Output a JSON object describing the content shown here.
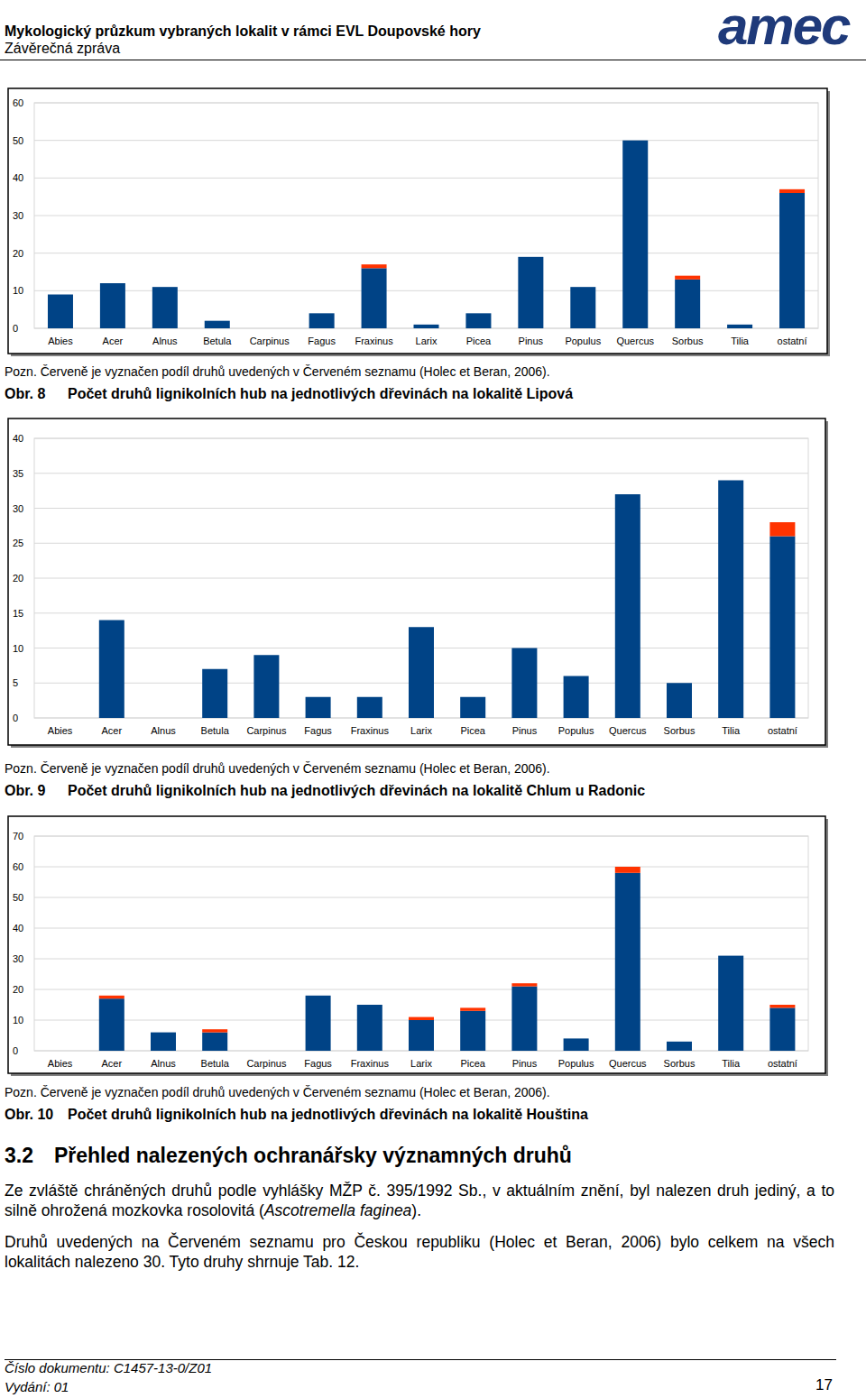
{
  "header": {
    "title": "Mykologický průzkum vybraných lokalit v rámci EVL Doupovské hory",
    "subtitle": "Závěrečná zpráva",
    "logo": "amec"
  },
  "chart_data": [
    {
      "type": "bar",
      "stacked": true,
      "grid": true,
      "title": "Počet druhů lignikolních hub na jednotlivých dřevinách na lokalitě Lipová",
      "annotations": [
        "Pozn. Červeně je vyznačen podíl druhů uvedených v Červeném seznamu (Holec et Beran, 2006).",
        "Obr. 8"
      ],
      "categories": [
        "Abies",
        "Acer",
        "Alnus",
        "Betula",
        "Carpinus",
        "Fagus",
        "Fraxinus",
        "Larix",
        "Picea",
        "Pinus",
        "Populus",
        "Quercus",
        "Sorbus",
        "Tilia",
        "ostatní"
      ],
      "series": [
        {
          "color": "#004386",
          "values": [
            9,
            12,
            11,
            2,
            0,
            4,
            16,
            1,
            4,
            19,
            11,
            50,
            13,
            1,
            36
          ]
        },
        {
          "color": "#ff3300",
          "values": [
            0,
            0,
            0,
            0,
            0,
            0,
            1,
            0,
            0,
            0,
            0,
            0,
            1,
            0,
            1
          ]
        }
      ],
      "ylim": [
        0,
        60
      ],
      "yticks": [
        0,
        10,
        20,
        30,
        40,
        50,
        60
      ]
    },
    {
      "type": "bar",
      "stacked": true,
      "grid": true,
      "title": "Počet druhů lignikolních hub na jednotlivých dřevinách na lokalitě Chlum u Radonic",
      "annotations": [
        "Pozn. Červeně je vyznačen podíl druhů uvedených v Červeném seznamu (Holec et Beran, 2006).",
        "Obr. 9"
      ],
      "categories": [
        "Abies",
        "Acer",
        "Alnus",
        "Betula",
        "Carpinus",
        "Fagus",
        "Fraxinus",
        "Larix",
        "Picea",
        "Pinus",
        "Populus",
        "Quercus",
        "Sorbus",
        "Tilia",
        "ostatní"
      ],
      "series": [
        {
          "color": "#004386",
          "values": [
            0,
            14,
            0,
            7,
            9,
            3,
            3,
            13,
            3,
            10,
            6,
            32,
            5,
            34,
            26
          ]
        },
        {
          "color": "#ff3300",
          "values": [
            0,
            0,
            0,
            0,
            0,
            0,
            0,
            0,
            0,
            0,
            0,
            0,
            0,
            0,
            2
          ]
        }
      ],
      "ylim": [
        0,
        40
      ],
      "yticks": [
        0,
        5,
        10,
        15,
        20,
        25,
        30,
        35,
        40
      ]
    },
    {
      "type": "bar",
      "stacked": true,
      "grid": true,
      "title": "Počet druhů lignikolních hub na jednotlivých dřevinách na lokalitě Houština",
      "annotations": [
        "Pozn. Červeně je vyznačen podíl druhů uvedených v Červeném seznamu (Holec et Beran, 2006).",
        "Obr. 10"
      ],
      "categories": [
        "Abies",
        "Acer",
        "Alnus",
        "Betula",
        "Carpinus",
        "Fagus",
        "Fraxinus",
        "Larix",
        "Picea",
        "Pinus",
        "Populus",
        "Quercus",
        "Sorbus",
        "Tilia",
        "ostatní"
      ],
      "series": [
        {
          "color": "#004386",
          "values": [
            0,
            17,
            6,
            6,
            0,
            18,
            15,
            10,
            13,
            21,
            4,
            58,
            3,
            31,
            14
          ]
        },
        {
          "color": "#ff3300",
          "values": [
            0,
            1,
            0,
            1,
            0,
            0,
            0,
            1,
            1,
            1,
            0,
            2,
            0,
            0,
            1
          ]
        }
      ],
      "ylim": [
        0,
        70
      ],
      "yticks": [
        0,
        10,
        20,
        30,
        40,
        50,
        60,
        70
      ]
    }
  ],
  "section": {
    "heading": "3.2 Přehled nalezených ochranářsky významných druhů",
    "paragraphs": [
      [
        "Ze zvláště chráněných druhů podle vyhlášky MŽP č. 395/1992 Sb., v aktuálním znění, byl nalezen druh jediný, a to silně ohrožená mozkovka rosolovitá (",
        "Ascotremella faginea",
        ")."
      ],
      [
        "Druhů uvedených na Červeném seznamu pro Českou republiku (Holec et Beran, 2006) bylo celkem na všech lokalitách nalezeno 30. Tyto druhy shrnuje Tab. 12."
      ]
    ]
  },
  "footer": {
    "document": "Číslo dokumentu: C1457-13-0/Z01",
    "edition": "Vydání: 01",
    "page": "17"
  }
}
